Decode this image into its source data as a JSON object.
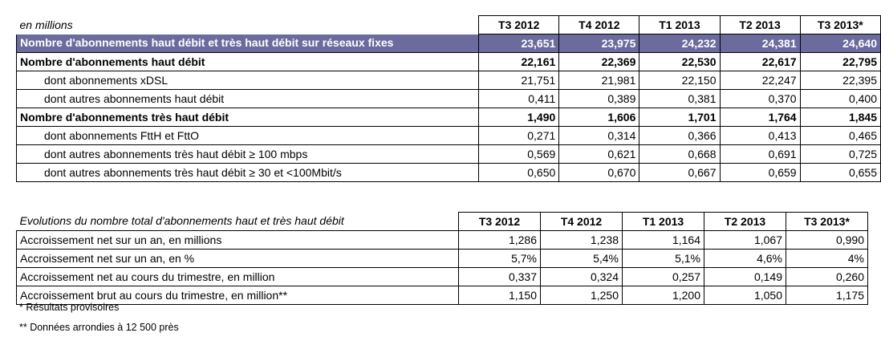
{
  "table1": {
    "caption": "en millions",
    "columns": [
      "T3 2012",
      "T4 2012",
      "T1 2013",
      "T2 2013",
      "T3 2013*"
    ],
    "rows": [
      {
        "label": "Nombre d'abonnements haut débit et très haut débit sur réseaux fixes",
        "values": [
          "23,651",
          "23,975",
          "24,232",
          "24,381",
          "24,640"
        ]
      },
      {
        "label": "Nombre d'abonnements haut débit",
        "values": [
          "22,161",
          "22,369",
          "22,530",
          "22,617",
          "22,795"
        ]
      },
      {
        "label": "dont abonnements xDSL",
        "values": [
          "21,751",
          "21,981",
          "22,150",
          "22,247",
          "22,395"
        ]
      },
      {
        "label": "dont autres abonnements haut débit",
        "values": [
          "0,411",
          "0,389",
          "0,381",
          "0,370",
          "0,400"
        ]
      },
      {
        "label": "Nombre d'abonnements très haut débit",
        "values": [
          "1,490",
          "1,606",
          "1,701",
          "1,764",
          "1,845"
        ]
      },
      {
        "label": "dont abonnements FttH et FttO",
        "values": [
          "0,271",
          "0,314",
          "0,366",
          "0,413",
          "0,465"
        ]
      },
      {
        "label": "dont autres abonnements très haut débit ≥ 100 mbps",
        "values": [
          "0,569",
          "0,621",
          "0,668",
          "0,691",
          "0,725"
        ]
      },
      {
        "label": "dont autres abonnements très haut débit ≥ 30 et <100Mbit/s",
        "values": [
          "0,650",
          "0,670",
          "0,667",
          "0,659",
          "0,655"
        ]
      }
    ]
  },
  "table2": {
    "caption": "Evolutions du nombre total d'abonnements haut et très haut débit",
    "columns": [
      "T3 2012",
      "T4 2012",
      "T1 2013",
      "T2 2013",
      "T3 2013*"
    ],
    "rows": [
      {
        "label": "Accroissement net sur un an, en millions",
        "values": [
          "1,286",
          "1,238",
          "1,164",
          "1,067",
          "0,990"
        ]
      },
      {
        "label": "Accroissement net sur un an, en %",
        "values": [
          "5,7%",
          "5,4%",
          "5,1%",
          "4,6%",
          "4%"
        ]
      },
      {
        "label": "Accroissement net au cours du trimestre, en million",
        "values": [
          "0,337",
          "0,324",
          "0,257",
          "0,149",
          "0,260"
        ]
      },
      {
        "label": "Accroissement brut au cours du trimestre, en million**",
        "values": [
          "1,150",
          "1,250",
          "1,200",
          "1,050",
          "1,175"
        ]
      }
    ]
  },
  "notes": {
    "provisional": "* Résultats provisoires",
    "rounded": "** Données arrondies à 12 500 près"
  },
  "colors": {
    "highlight_row": "#6b6b9e"
  }
}
